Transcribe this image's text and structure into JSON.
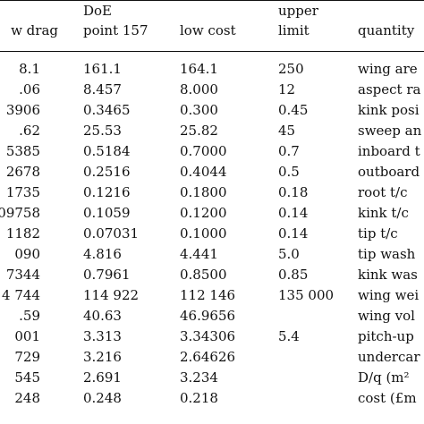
{
  "header": {
    "col0": "w drag",
    "col1_line1": "DoE",
    "col1_line2": "point 157",
    "col2": "low cost",
    "col3_line1": "upper",
    "col3_line2": "limit",
    "col4": "quantity"
  },
  "rows": [
    {
      "c0": "8.1",
      "c1": "161.1",
      "c2": "164.1",
      "c3": "250",
      "c4": "wing are"
    },
    {
      "c0": ".06",
      "c1": "8.457",
      "c2": "8.000",
      "c3": "12",
      "c4": "aspect ra"
    },
    {
      "c0": "3906",
      "c1": "0.3465",
      "c2": "0.300",
      "c3": "0.45",
      "c4": "kink posi"
    },
    {
      "c0": ".62",
      "c1": "25.53",
      "c2": "25.82",
      "c3": "45",
      "c4": "sweep an"
    },
    {
      "c0": "5385",
      "c1": "0.5184",
      "c2": "0.7000",
      "c3": "0.7",
      "c4": "inboard t"
    },
    {
      "c0": "2678",
      "c1": "0.2516",
      "c2": "0.4044",
      "c3": "0.5",
      "c4": "outboard"
    },
    {
      "c0": "1735",
      "c1": "0.1216",
      "c2": "0.1800",
      "c3": "0.18",
      "c4": "root t/c"
    },
    {
      "c0": "09758",
      "c1": "0.1059",
      "c2": "0.1200",
      "c3": "0.14",
      "c4": "kink t/c"
    },
    {
      "c0": "1182",
      "c1": "0.07031",
      "c2": "0.1000",
      "c3": "0.14",
      "c4": "tip t/c"
    },
    {
      "c0": "090",
      "c1": "4.816",
      "c2": "4.441",
      "c3": "5.0",
      "c4": "tip wash"
    },
    {
      "c0": "7344",
      "c1": "0.7961",
      "c2": "0.8500",
      "c3": "0.85",
      "c4": "kink was"
    },
    {
      "c0": "4 744",
      "c1": "114 922",
      "c2": "112 146",
      "c3": "135 000",
      "c4": "wing wei"
    },
    {
      "c0": ".59",
      "c1": "40.63",
      "c2": "46.9656",
      "c3": "",
      "c4": "wing vol"
    },
    {
      "c0": "001",
      "c1": "3.313",
      "c2": "3.34306",
      "c3": "5.4",
      "c4": "pitch-up"
    },
    {
      "c0": "729",
      "c1": "3.216",
      "c2": "2.64626",
      "c3": "",
      "c4": "undercar"
    },
    {
      "c0": "545",
      "c1": "2.691",
      "c2": "3.234",
      "c3": "",
      "c4": "D/q (m²"
    },
    {
      "c0": "248",
      "c1": "0.248",
      "c2": "0.218",
      "c3": "",
      "c4": "cost (£m"
    }
  ]
}
